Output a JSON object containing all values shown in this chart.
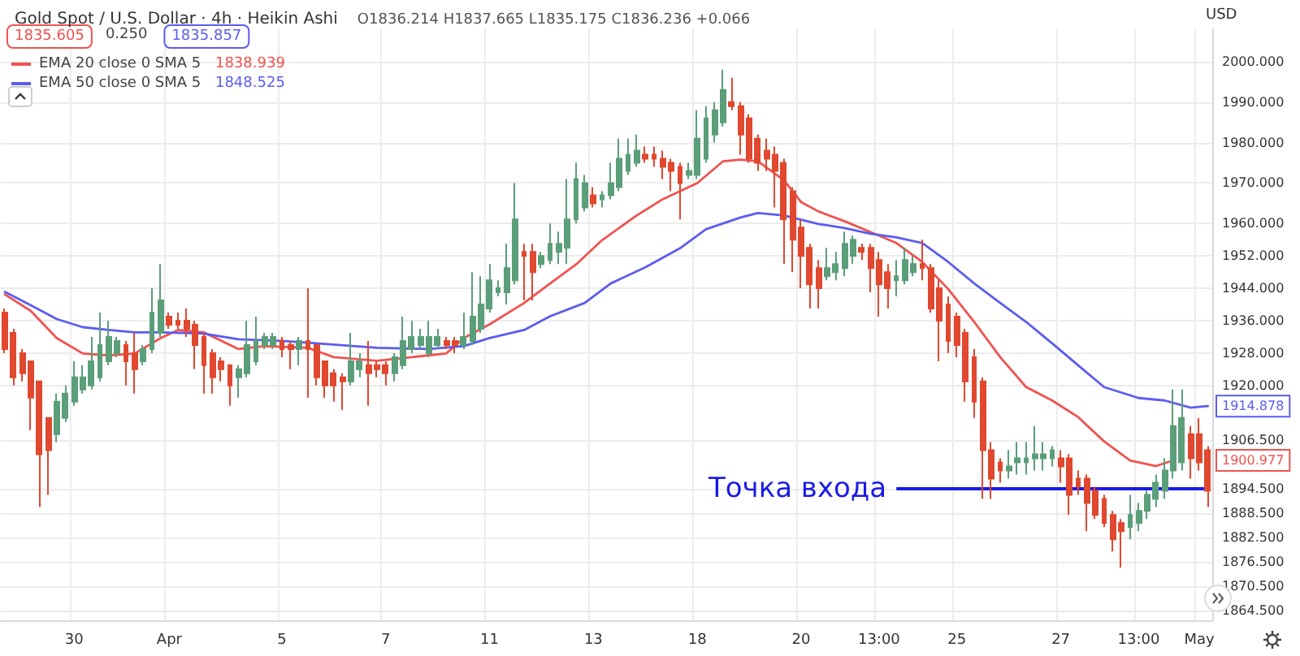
{
  "chart_data": {
    "type": "candlestick",
    "title": "Gold Spot / U.S. Dollar · 4h · Heikin Ashi",
    "subtitle": "O1836.214 H1837.665 L1835.175 C1836.236 +0.066",
    "ylabel": "USD",
    "categories": [
      null,
      null,
      null,
      null,
      null,
      null,
      null,
      null,
      "30",
      null,
      null,
      null,
      null,
      null,
      null,
      null,
      null,
      null,
      null,
      "Apr",
      null,
      null,
      null,
      null,
      null,
      null,
      null,
      null,
      null,
      null,
      null,
      null,
      "5",
      null,
      null,
      null,
      null,
      null,
      null,
      null,
      null,
      null,
      null,
      null,
      "7",
      null,
      null,
      null,
      null,
      null,
      null,
      null,
      null,
      null,
      null,
      null,
      "11",
      null,
      null,
      null,
      null,
      null,
      null,
      null,
      null,
      null,
      null,
      null,
      "13",
      null,
      null,
      null,
      null,
      null,
      null,
      null,
      null,
      null,
      null,
      null,
      "18",
      null,
      null,
      null,
      null,
      null,
      null,
      null,
      null,
      null,
      null,
      null,
      "20",
      null,
      null,
      null,
      null,
      null,
      null,
      null,
      null,
      "13:00",
      null,
      null,
      null,
      null,
      null,
      null,
      null,
      null,
      "25",
      null,
      null,
      null,
      null,
      null,
      null,
      null,
      null,
      null,
      null,
      null,
      "27",
      null,
      null,
      null,
      null,
      null,
      null,
      null,
      null,
      "13:00",
      null,
      null,
      null,
      null,
      null,
      null,
      "May",
      null
    ],
    "ohlc": [
      [
        1938,
        1939,
        1928,
        1929
      ],
      [
        1933,
        1934,
        1920,
        1922
      ],
      [
        1928,
        1929,
        1921,
        1923
      ],
      [
        1926,
        1926,
        1909,
        1917
      ],
      [
        1921,
        1921,
        1890,
        1903
      ],
      [
        1912,
        1912,
        1893,
        1904
      ],
      [
        1908,
        1918,
        1906,
        1916
      ],
      [
        1912,
        1920,
        1911,
        1918
      ],
      [
        1916,
        1926,
        1915,
        1922
      ],
      [
        1919,
        1925,
        1918,
        1922
      ],
      [
        1920,
        1932,
        1919,
        1926
      ],
      [
        1922,
        1938,
        1921,
        1930
      ],
      [
        1926,
        1936,
        1925,
        1932
      ],
      [
        1928,
        1932,
        1927,
        1931
      ],
      [
        1930,
        1931,
        1920,
        1926
      ],
      [
        1928,
        1933,
        1918,
        1924
      ],
      [
        1926,
        1930,
        1925,
        1929
      ],
      [
        1929,
        1944,
        1928,
        1938
      ],
      [
        1933,
        1950,
        1932,
        1941
      ],
      [
        1937,
        1938,
        1934,
        1935
      ],
      [
        1936,
        1938,
        1934,
        1935
      ],
      [
        1936,
        1939,
        1932,
        1934
      ],
      [
        1935,
        1936,
        1924,
        1930
      ],
      [
        1932,
        1933,
        1918,
        1925
      ],
      [
        1928,
        1929,
        1918,
        1922
      ],
      [
        1926,
        1927,
        1921,
        1924
      ],
      [
        1925,
        1925,
        1915,
        1920
      ],
      [
        1922,
        1925,
        1917,
        1924
      ],
      [
        1923,
        1936,
        1922,
        1930
      ],
      [
        1926,
        1937,
        1925,
        1931
      ],
      [
        1930,
        1933,
        1929,
        1932
      ],
      [
        1930,
        1933,
        1929,
        1932
      ],
      [
        1931,
        1932,
        1927,
        1929
      ],
      [
        1930,
        1931,
        1924,
        1929
      ],
      [
        1929,
        1932,
        1925,
        1931
      ],
      [
        1931,
        1944,
        1917,
        1929
      ],
      [
        1930,
        1930,
        1920,
        1922
      ],
      [
        1926,
        1926,
        1917,
        1920
      ],
      [
        1923,
        1924,
        1916,
        1920
      ],
      [
        1922,
        1923,
        1914,
        1921
      ],
      [
        1921,
        1933,
        1920,
        1926
      ],
      [
        1924,
        1928,
        1922,
        1926
      ],
      [
        1925,
        1931,
        1915,
        1923
      ],
      [
        1925,
        1926,
        1922,
        1924
      ],
      [
        1925,
        1926,
        1920,
        1923
      ],
      [
        1923,
        1928,
        1921,
        1927
      ],
      [
        1925,
        1937,
        1924,
        1931
      ],
      [
        1929,
        1936,
        1928,
        1932
      ],
      [
        1930,
        1934,
        1929,
        1932
      ],
      [
        1928,
        1936,
        1927,
        1932
      ],
      [
        1930,
        1934,
        1929,
        1932
      ],
      [
        1931,
        1932,
        1929,
        1930
      ],
      [
        1931,
        1932,
        1928,
        1930
      ],
      [
        1930,
        1938,
        1929,
        1932
      ],
      [
        1931,
        1948,
        1930,
        1937
      ],
      [
        1934,
        1947,
        1933,
        1940
      ],
      [
        1939,
        1950,
        1938,
        1946
      ],
      [
        1943,
        1946,
        1942,
        1944
      ],
      [
        1943,
        1955,
        1940,
        1949
      ],
      [
        1946,
        1970,
        1945,
        1961
      ],
      [
        1953,
        1955,
        1941,
        1952
      ],
      [
        1953,
        1955,
        1941,
        1948
      ],
      [
        1950,
        1953,
        1949,
        1952
      ],
      [
        1951,
        1960,
        1950,
        1955
      ],
      [
        1953,
        1958,
        1950,
        1955
      ],
      [
        1954,
        1971,
        1950,
        1961
      ],
      [
        1961,
        1975,
        1960,
        1971
      ],
      [
        1964,
        1972,
        1963,
        1970
      ],
      [
        1967,
        1969,
        1964,
        1965
      ],
      [
        1966,
        1968,
        1964,
        1967
      ],
      [
        1967,
        1975,
        1966,
        1970
      ],
      [
        1969,
        1981,
        1968,
        1976
      ],
      [
        1973,
        1981,
        1972,
        1977
      ],
      [
        1975,
        1982,
        1974,
        1978
      ],
      [
        1977,
        1979,
        1975,
        1976
      ],
      [
        1977,
        1979,
        1974,
        1976
      ],
      [
        1976,
        1978,
        1971,
        1974
      ],
      [
        1975,
        1976,
        1968,
        1973
      ],
      [
        1974,
        1975,
        1961,
        1970
      ],
      [
        1972,
        1975,
        1971,
        1973
      ],
      [
        1972,
        1988,
        1971,
        1981
      ],
      [
        1976,
        1989,
        1975,
        1986
      ],
      [
        1982,
        1990,
        1980,
        1988
      ],
      [
        1985,
        1998,
        1984,
        1993
      ],
      [
        1990,
        1996,
        1988,
        1989
      ],
      [
        1989,
        1990,
        1977,
        1982
      ],
      [
        1986,
        1987,
        1975,
        1976
      ],
      [
        1981,
        1982,
        1973,
        1975
      ],
      [
        1978,
        1981,
        1973,
        1976
      ],
      [
        1977,
        1979,
        1964,
        1973
      ],
      [
        1975,
        1976,
        1950,
        1961
      ],
      [
        1968,
        1969,
        1948,
        1956
      ],
      [
        1959,
        1961,
        1944,
        1952
      ],
      [
        1954,
        1955,
        1939,
        1945
      ],
      [
        1949,
        1951,
        1939,
        1944
      ],
      [
        1947,
        1954,
        1946,
        1949
      ],
      [
        1948,
        1953,
        1946,
        1950
      ],
      [
        1949,
        1958,
        1947,
        1955
      ],
      [
        1952,
        1957,
        1950,
        1956
      ],
      [
        1954,
        1955,
        1951,
        1953
      ],
      [
        1954,
        1955,
        1943,
        1949
      ],
      [
        1951,
        1953,
        1937,
        1945
      ],
      [
        1948,
        1950,
        1939,
        1944
      ],
      [
        1946,
        1951,
        1942,
        1947
      ],
      [
        1946,
        1954,
        1945,
        1951
      ],
      [
        1948,
        1952,
        1947,
        1950
      ],
      [
        1950,
        1956,
        1946,
        1949
      ],
      [
        1949,
        1950,
        1938,
        1939
      ],
      [
        1944,
        1946,
        1926,
        1936
      ],
      [
        1940,
        1942,
        1928,
        1931
      ],
      [
        1937,
        1938,
        1927,
        1930
      ],
      [
        1933,
        1934,
        1916,
        1921
      ],
      [
        1927,
        1929,
        1912,
        1916
      ],
      [
        1921,
        1922,
        1892,
        1904
      ],
      [
        1904,
        1906,
        1892,
        1897
      ],
      [
        1901,
        1902,
        1896,
        1899
      ],
      [
        1899,
        1904,
        1897,
        1900
      ],
      [
        1901,
        1906,
        1898,
        1902
      ],
      [
        1901,
        1906,
        1898,
        1902
      ],
      [
        1902,
        1910,
        1899,
        1903
      ],
      [
        1902,
        1906,
        1899,
        1903
      ],
      [
        1902,
        1905,
        1900,
        1904
      ],
      [
        1902,
        1904,
        1896,
        1900
      ],
      [
        1902,
        1903,
        1888,
        1893
      ],
      [
        1897,
        1899,
        1893,
        1895
      ],
      [
        1897,
        1898,
        1884,
        1891
      ],
      [
        1894,
        1895,
        1887,
        1888
      ],
      [
        1892,
        1893,
        1885,
        1886
      ],
      [
        1888,
        1889,
        1879,
        1882
      ],
      [
        1886,
        1887,
        1875,
        1884
      ],
      [
        1885,
        1893,
        1882,
        1888
      ],
      [
        1886,
        1891,
        1884,
        1889
      ],
      [
        1889,
        1894,
        1887,
        1893
      ],
      [
        1892,
        1898,
        1890,
        1896
      ],
      [
        1894,
        1902,
        1892,
        1899
      ],
      [
        1899,
        1919,
        1897,
        1910
      ],
      [
        1901,
        1919,
        1899,
        1912
      ],
      [
        1908,
        1910,
        1897,
        1902
      ],
      [
        1908,
        1912,
        1899,
        1901
      ],
      [
        1904,
        1905,
        1890,
        1894
      ]
    ],
    "colors": [
      "#e0482f",
      "#e0482f",
      "#e0482f",
      "#e0482f",
      "#e0482f",
      "#e0482f",
      "#5b9e7a",
      "#5b9e7a",
      "#5b9e7a",
      "#5b9e7a",
      "#5b9e7a",
      "#5b9e7a",
      "#5b9e7a",
      "#5b9e7a",
      "#e0482f",
      "#e0482f",
      "#5b9e7a",
      "#5b9e7a",
      "#5b9e7a",
      "#e0482f",
      "#e0482f",
      "#e0482f",
      "#e0482f",
      "#e0482f",
      "#e0482f",
      "#e0482f",
      "#e0482f",
      "#5b9e7a",
      "#5b9e7a",
      "#5b9e7a",
      "#5b9e7a",
      "#5b9e7a",
      "#e0482f",
      "#e0482f",
      "#5b9e7a",
      "#e0482f",
      "#e0482f",
      "#e0482f",
      "#e0482f",
      "#e0482f",
      "#5b9e7a",
      "#5b9e7a",
      "#e0482f",
      "#e0482f",
      "#e0482f",
      "#5b9e7a",
      "#5b9e7a",
      "#5b9e7a",
      "#5b9e7a",
      "#5b9e7a",
      "#5b9e7a",
      "#e0482f",
      "#e0482f",
      "#5b9e7a",
      "#5b9e7a",
      "#5b9e7a",
      "#5b9e7a",
      "#5b9e7a",
      "#5b9e7a",
      "#5b9e7a",
      "#e0482f",
      "#e0482f",
      "#5b9e7a",
      "#5b9e7a",
      "#5b9e7a",
      "#5b9e7a",
      "#5b9e7a",
      "#5b9e7a",
      "#e0482f",
      "#5b9e7a",
      "#5b9e7a",
      "#5b9e7a",
      "#5b9e7a",
      "#5b9e7a",
      "#e0482f",
      "#e0482f",
      "#e0482f",
      "#e0482f",
      "#e0482f",
      "#5b9e7a",
      "#5b9e7a",
      "#5b9e7a",
      "#5b9e7a",
      "#5b9e7a",
      "#e0482f",
      "#e0482f",
      "#e0482f",
      "#e0482f",
      "#e0482f",
      "#e0482f",
      "#e0482f",
      "#e0482f",
      "#e0482f",
      "#e0482f",
      "#e0482f",
      "#5b9e7a",
      "#5b9e7a",
      "#5b9e7a",
      "#5b9e7a",
      "#e0482f",
      "#e0482f",
      "#e0482f",
      "#e0482f",
      "#5b9e7a",
      "#5b9e7a",
      "#5b9e7a",
      "#e0482f",
      "#e0482f",
      "#e0482f",
      "#e0482f",
      "#e0482f",
      "#e0482f",
      "#e0482f",
      "#e0482f",
      "#e0482f",
      "#e0482f",
      "#5b9e7a",
      "#5b9e7a",
      "#5b9e7a",
      "#5b9e7a",
      "#5b9e7a",
      "#5b9e7a",
      "#e0482f",
      "#e0482f",
      "#e0482f",
      "#e0482f",
      "#e0482f",
      "#e0482f",
      "#e0482f",
      "#e0482f",
      "#5b9e7a",
      "#5b9e7a",
      "#5b9e7a",
      "#5b9e7a",
      "#5b9e7a",
      "#5b9e7a",
      "#5b9e7a",
      "#e0482f",
      "#e0482f",
      "#e0482f"
    ],
    "series": [
      {
        "type": "line",
        "name": "EMA 20 close 0 SMA 5",
        "color": "#ef5350",
        "values": [
          1942.5,
          null,
          null,
          1938.4,
          null,
          null,
          1931.7,
          null,
          null,
          1927.9,
          null,
          null,
          1927.4,
          null,
          null,
          1927.9,
          null,
          null,
          1931.7,
          null,
          1933.7,
          null,
          null,
          1933.1,
          null,
          null,
          null,
          1929,
          null,
          null,
          1929.7,
          null,
          null,
          null,
          null,
          1929.3,
          null,
          null,
          1927,
          null,
          null,
          null,
          null,
          1926.1,
          null,
          null,
          null,
          1927,
          null,
          null,
          null,
          1927.9,
          null,
          1931.7,
          null,
          null,
          1935.1,
          null,
          null,
          null,
          1940.4,
          null,
          null,
          1945.2,
          null,
          null,
          1949.9,
          null,
          null,
          1955.9,
          null,
          null,
          null,
          1962,
          null,
          null,
          1966,
          null,
          null,
          null,
          1970,
          null,
          null,
          1975.4,
          null,
          1975.8,
          null,
          1975.4,
          null,
          null,
          1970.7,
          null,
          1965.3,
          null,
          1963,
          null,
          null,
          1960.6,
          null,
          null,
          1957.9,
          null,
          null,
          1955.2,
          null,
          null,
          1950.5,
          null,
          null,
          1943.8,
          null,
          null,
          1935.7,
          null,
          null,
          1927,
          null,
          null,
          1919.6,
          null,
          null,
          1916.3,
          null,
          null,
          1912.2,
          null,
          null,
          1906.2,
          null,
          null,
          1901.5,
          null,
          null,
          1900.1,
          null,
          1901.5,
          null,
          null,
          null,
          null
        ]
      },
      {
        "type": "line",
        "name": "EMA 50 close 0 SMA 5",
        "color": "#5c5cf0",
        "values": [
          1943.1,
          null,
          null,
          1939.8,
          null,
          null,
          1936.4,
          null,
          null,
          1934.4,
          null,
          null,
          1933.7,
          null,
          null,
          1933.1,
          null,
          null,
          1933.1,
          null,
          null,
          null,
          null,
          1932.8,
          null,
          null,
          null,
          1931.4,
          null,
          null,
          null,
          null,
          1931,
          null,
          null,
          null,
          1930.4,
          null,
          null,
          null,
          null,
          null,
          null,
          1929.3,
          null,
          null,
          null,
          null,
          null,
          1929,
          null,
          null,
          null,
          1929.7,
          null,
          null,
          1931.7,
          null,
          null,
          null,
          1933.7,
          null,
          null,
          1937.1,
          null,
          null,
          null,
          1940.4,
          null,
          null,
          1945.2,
          null,
          null,
          null,
          1949.2,
          null,
          null,
          null,
          1953.9,
          null,
          null,
          1958.6,
          null,
          null,
          null,
          1961.5,
          null,
          1962.6,
          null,
          null,
          1962,
          null,
          null,
          null,
          1959.9,
          null,
          null,
          1958.9,
          null,
          null,
          1957.5,
          null,
          null,
          1956.6,
          null,
          null,
          1955.2,
          null,
          null,
          1950.5,
          null,
          null,
          1945.2,
          null,
          null,
          1940.4,
          null,
          null,
          1935.7,
          null,
          null,
          1930.4,
          null,
          null,
          1925,
          null,
          null,
          1919.6,
          null,
          null,
          null,
          1916.9,
          null,
          null,
          1916.3,
          null,
          null,
          1914.5,
          null,
          1914.9
        ]
      }
    ],
    "ylim": [
      1862,
      2008
    ],
    "yticks": [
      {
        "value": 2000,
        "label": "2000.000"
      },
      {
        "value": 1990,
        "label": "1990.000"
      },
      {
        "value": 1980,
        "label": "1980.000"
      },
      {
        "value": 1970,
        "label": "1970.000"
      },
      {
        "value": 1960,
        "label": "1960.000"
      },
      {
        "value": 1952,
        "label": "1952.000"
      },
      {
        "value": 1944,
        "label": "1944.000"
      },
      {
        "value": 1936,
        "label": "1936.000"
      },
      {
        "value": 1928,
        "label": "1928.000"
      },
      {
        "value": 1920,
        "label": "1920.000"
      },
      {
        "value": 1906.5,
        "label": "1906.500"
      },
      {
        "value": 1894.5,
        "label": "1894.500"
      },
      {
        "value": 1888.5,
        "label": "1888.500"
      },
      {
        "value": 1882.5,
        "label": "1882.500"
      },
      {
        "value": 1876.5,
        "label": "1876.500"
      },
      {
        "value": 1870.5,
        "label": "1870.500"
      },
      {
        "value": 1864.5,
        "label": "1864.500"
      }
    ],
    "ref_lines": [
      {
        "axis": "y",
        "value": 1894.5,
        "label": "Точка входа",
        "color": "#1a1ae6",
        "line_style": "solid"
      }
    ],
    "annotations": [
      "1835.605",
      "0.250",
      "1835.857",
      "1838.939",
      "1848.525",
      "1914.878",
      "1900.977"
    ],
    "grid": true,
    "legend": "top left"
  }
}
